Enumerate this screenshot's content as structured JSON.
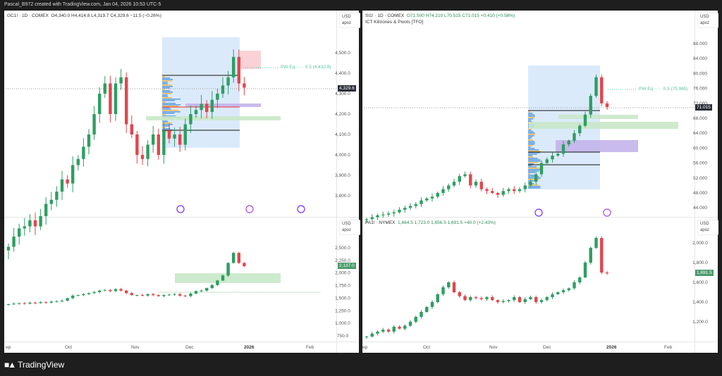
{
  "header": {
    "title": "Pascal_B972 created with TradingView.com, Jan 04, 2026 10:53 UTC-5"
  },
  "brand": {
    "name": "TradingView"
  },
  "currency": {
    "usd": "USD",
    "apoz": "apoz"
  },
  "left": {
    "top_legend": {
      "symbol": "GC1! · 1D · COMEX",
      "ohlc": "O4,340.0  H4,414.8  L4,319.7  C4,329.6  −11.5 (−0.26%)"
    },
    "pw_eq": "PW Eq  ·····  0.5 (4,432.8)",
    "top_price_badge": "4,329.6",
    "bottom_price_badge": "2,137.0"
  },
  "right": {
    "top_legend": {
      "symbol": "SI1! · 1D · COMEX",
      "ohlc": "O71.500  H74.210  L70.515  C71.015  +0.410 (+0.58%)",
      "indicator": "ICT Killzones & Pivots [TFO]"
    },
    "pw_eq": "PW Eq  ·····  0.5 (75.965)",
    "top_price_badge": "71.015",
    "bottom_legend": {
      "symbol": "PA1! · NYMEX",
      "ohlc": "1,664.5  1,723.0  1,656.5  1,691.5  +40.0 (+2.43%)"
    },
    "bottom_price_badge": "1,691.5"
  },
  "time_axis": [
    "ep",
    "Oct",
    "Nov",
    "Dec",
    "2026",
    "Feb"
  ],
  "colors": {
    "up": "#2e9e62",
    "down": "#e0474c",
    "box_blue": "#dbeafb",
    "box_green": "#c9e8c9",
    "box_purple": "#c3b4ea",
    "box_pink": "#f7c6cc",
    "accent": "#7b2ff7"
  },
  "chart_data": [
    {
      "type": "candlestick",
      "name": "GC1! top",
      "ticks": [
        3800,
        3900,
        4000,
        4100,
        4200,
        4300,
        4400,
        4500
      ],
      "tick_labels": [
        "3,800.0",
        "3,900.0",
        "4,000.0",
        "4,100.0",
        "4,200.0",
        "4,300.0",
        "4,400.0",
        "4,500.0"
      ],
      "closes": [
        3550,
        3600,
        3640,
        3650,
        3680,
        3650,
        3700,
        3760,
        3780,
        3820,
        3880,
        3860,
        3950,
        3980,
        4040,
        4100,
        4200,
        4300,
        4350,
        4200,
        4350,
        4380,
        4150,
        4100,
        4000,
        3980,
        4050,
        4100,
        4000,
        4120,
        4080,
        4100,
        4050,
        4150,
        4200,
        4220,
        4250,
        4210,
        4270,
        4300,
        4340,
        4380,
        4480,
        4350,
        4329.6
      ]
    },
    {
      "type": "candlestick",
      "name": "Lower left",
      "ticks": [
        750,
        1000,
        1250,
        1500,
        1750,
        2000,
        2250,
        2500
      ],
      "tick_labels": [
        "750.0",
        "1,000.0",
        "1,250.0",
        "1,500.0",
        "1,750.0",
        "2,000.0",
        "2,250.0",
        "2,500.0"
      ],
      "closes": [
        1380,
        1390,
        1400,
        1390,
        1410,
        1400,
        1420,
        1410,
        1430,
        1440,
        1450,
        1500,
        1550,
        1560,
        1580,
        1600,
        1620,
        1650,
        1660,
        1640,
        1680,
        1650,
        1600,
        1560,
        1560,
        1550,
        1580,
        1560,
        1540,
        1560,
        1570,
        1580,
        1550,
        1540,
        1590,
        1640,
        1650,
        1700,
        1760,
        1850,
        1950,
        2200,
        2400,
        2200,
        2137
      ]
    },
    {
      "type": "candlestick",
      "name": "SI1! top",
      "ticks": [
        44,
        48,
        52,
        56,
        60,
        64,
        68,
        72,
        76,
        80,
        84,
        88
      ],
      "tick_labels": [
        "44.000",
        "48.000",
        "52.000",
        "56.000",
        "60.000",
        "64.000",
        "68.000",
        "72.000",
        "76.000",
        "80.000",
        "84.000",
        "88.000"
      ],
      "closes": [
        41,
        41.5,
        42,
        42.2,
        42.5,
        42.8,
        43.5,
        44,
        44.5,
        45,
        46,
        46.5,
        47,
        48,
        49,
        50,
        51,
        52.5,
        53,
        50,
        51,
        49,
        48.5,
        48,
        47.5,
        48.5,
        49,
        48.5,
        49,
        50,
        51,
        53,
        56,
        57,
        58,
        58.5,
        61,
        62,
        64,
        66,
        69,
        74,
        79,
        72,
        71.015
      ]
    },
    {
      "type": "candlestick",
      "name": "PA1!",
      "ticks": [
        1200,
        1400,
        1600,
        1800,
        2000
      ],
      "tick_labels": [
        "1,200.0",
        "1,400.0",
        "1,600.0",
        "1,800.0",
        "2,000.0"
      ],
      "closes": [
        1050,
        1080,
        1100,
        1120,
        1100,
        1150,
        1130,
        1160,
        1200,
        1250,
        1300,
        1350,
        1400,
        1480,
        1550,
        1600,
        1500,
        1460,
        1420,
        1450,
        1440,
        1430,
        1450,
        1420,
        1400,
        1410,
        1420,
        1450,
        1400,
        1430,
        1450,
        1400,
        1420,
        1450,
        1480,
        1500,
        1520,
        1540,
        1600,
        1650,
        1800,
        1950,
        2050,
        1700,
        1691.5
      ]
    }
  ]
}
